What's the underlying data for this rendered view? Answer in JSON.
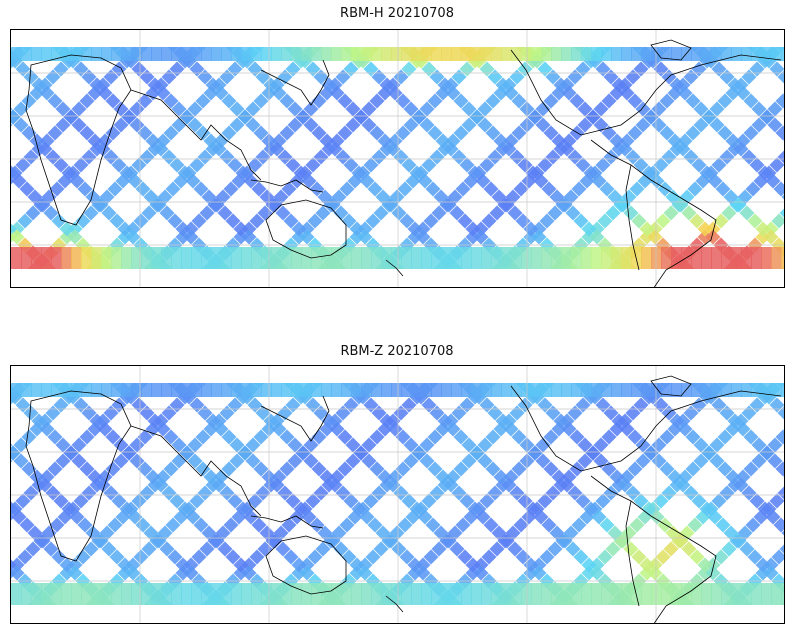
{
  "panels": [
    {
      "title": "RBM-H 20210708",
      "hot_regions": [
        {
          "name": "south-atlantic-south-america",
          "level": 0.95
        },
        {
          "name": "southern-ocean-west",
          "level": 0.75
        },
        {
          "name": "north-pacific-arctic",
          "level": 0.6
        }
      ]
    },
    {
      "title": "RBM-Z 20210708",
      "hot_regions": [
        {
          "name": "south-america-east",
          "level": 0.55
        },
        {
          "name": "southern-ocean",
          "level": 0.35
        }
      ]
    }
  ],
  "colormap": {
    "low": "#5a5ef5",
    "mid_low": "#5ad4f5",
    "mid": "#bff586",
    "mid_high": "#f5d452",
    "high": "#e86060"
  },
  "map": {
    "projection": "equirectangular",
    "coastline_color": "#000000",
    "gridline_color": "#c8c8c8"
  }
}
